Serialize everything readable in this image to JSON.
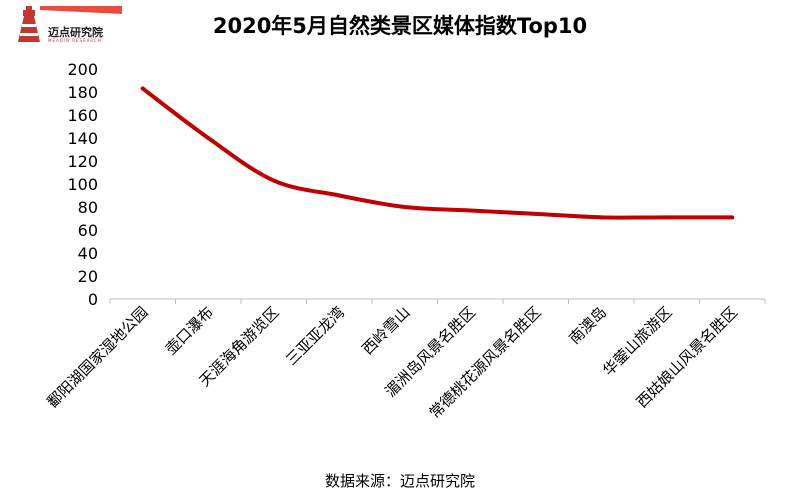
{
  "logo": {
    "text": "迈点研究院",
    "sub": "MEADIN  RESEARCH"
  },
  "chart_data": {
    "type": "line",
    "title": "2020年5月自然类景区媒体指数Top10",
    "categories": [
      "鄱阳湖国家湿地公园",
      "壶口瀑布",
      "天涯海角游览区",
      "三亚亚龙湾",
      "西岭雪山",
      "湄洲岛风景名胜区",
      "常德桃花源风景名胜区",
      "南澳岛",
      "华蓥山旅游区",
      "西姑娘山风景名胜区"
    ],
    "series": [
      {
        "values": [
          183,
          140,
          103,
          90,
          80,
          77,
          74,
          71,
          71,
          71
        ],
        "color": "#c00000"
      }
    ],
    "ylim": [
      0,
      200
    ],
    "yticks": [
      0,
      20,
      40,
      60,
      80,
      100,
      120,
      140,
      160,
      180,
      200
    ],
    "grid": false,
    "xlabel": "",
    "ylabel": ""
  },
  "source": "数据来源：迈点研究院"
}
